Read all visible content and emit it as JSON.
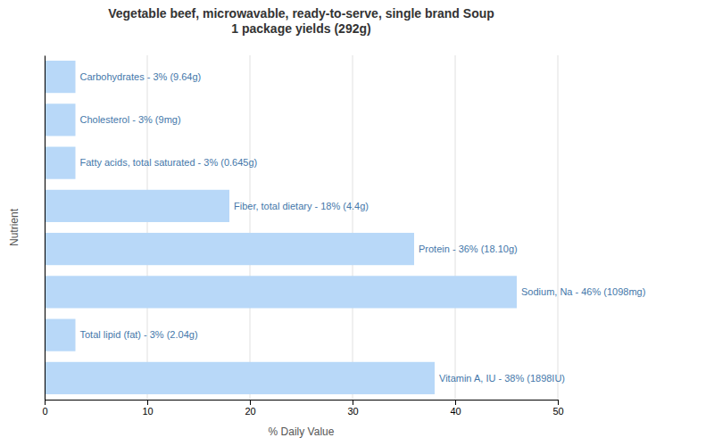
{
  "chart_data": {
    "type": "bar",
    "orientation": "horizontal",
    "title": "Vegetable beef, microwavable, ready-to-serve, single brand Soup\n1 package yields (292g)",
    "x_label": "% Daily Value",
    "y_label": "Nutrient",
    "categories": [
      null,
      null,
      null,
      null,
      null,
      null,
      null,
      null
    ],
    "values": [
      3,
      3,
      3,
      18,
      36,
      46,
      3,
      38
    ],
    "value_labels": [
      "Carbohydrates - 3% (9.64g)",
      "Cholesterol - 3% (9mg)",
      "Fatty acids, total saturated - 3% (0.645g)",
      "Fiber, total dietary - 18% (4.4g)",
      "Protein - 36% (18.10g)",
      "Sodium, Na - 46% (1098mg)",
      "Total lipid (fat) - 3% (2.04g)",
      "Vitamin A, IU - 38% (1898IU)"
    ],
    "data_labels": true,
    "color": "#b8d8f8",
    "xlim": [
      0,
      50
    ],
    "xticks": [
      0,
      10,
      20,
      30,
      40,
      50
    ],
    "grid": true,
    "tick_labels": "x"
  }
}
